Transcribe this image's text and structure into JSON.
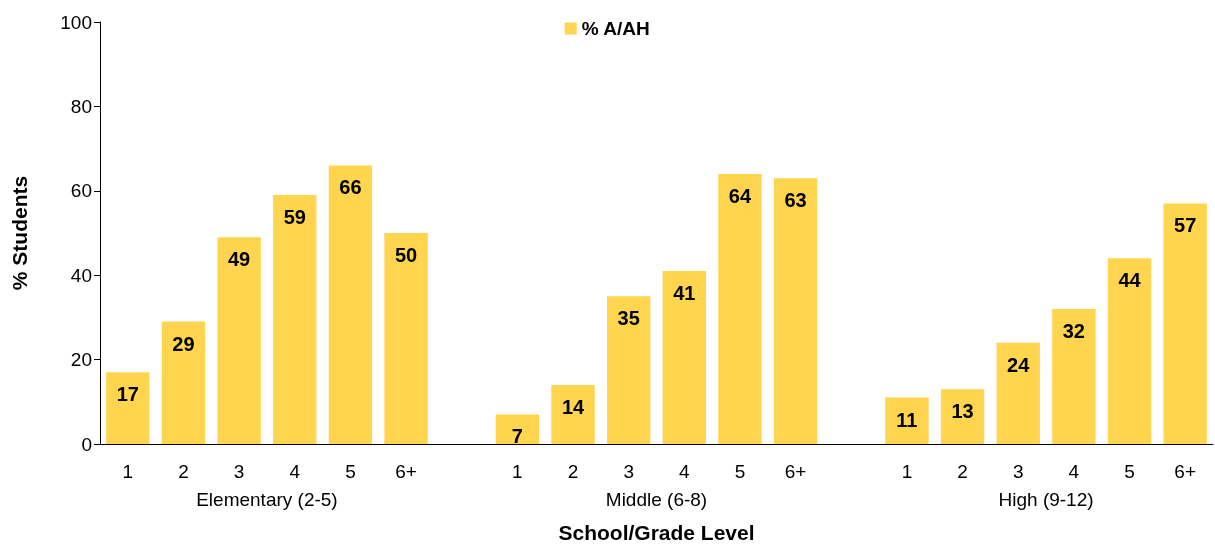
{
  "chart_data": {
    "type": "bar",
    "xlabel": "School/Grade Level",
    "ylabel": "% Students",
    "categories": [
      "1",
      "2",
      "3",
      "4",
      "5",
      "6+",
      null,
      "1",
      "2",
      "3",
      "4",
      "5",
      "6+",
      null,
      "1",
      "2",
      "3",
      "4",
      "5",
      "6+"
    ],
    "series": [
      {
        "name": "% A/AH",
        "color": "#ffd54f",
        "values": [
          17,
          29,
          49,
          59,
          66,
          50,
          null,
          7,
          14,
          35,
          41,
          64,
          63,
          null,
          11,
          13,
          24,
          32,
          44,
          57
        ]
      }
    ],
    "annotations": [
      "Elementary (2-5)",
      "Middle (6-8)",
      "High (9-12)"
    ],
    "ylim": [
      0,
      100
    ],
    "yticks": [
      0,
      20,
      40,
      60,
      80,
      100
    ],
    "grid": false,
    "legend": "top",
    "data_labels": true
  }
}
